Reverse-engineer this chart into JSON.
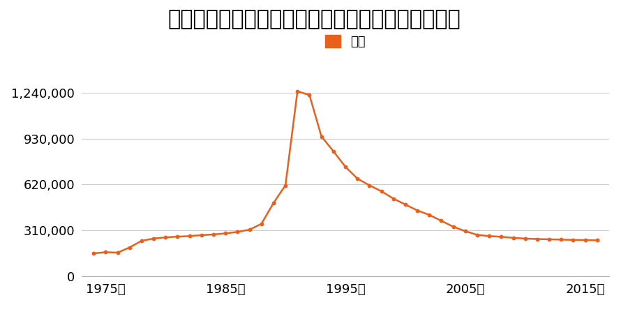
{
  "title": "大阪府東大阪市岩田町３丁目５０９番５の地価推移",
  "legend_label": "価格",
  "line_color": "#e8601c",
  "marker_color": "#e8601c",
  "background_color": "#ffffff",
  "grid_color": "#cccccc",
  "years": [
    1974,
    1975,
    1976,
    1977,
    1978,
    1979,
    1980,
    1981,
    1982,
    1983,
    1984,
    1985,
    1986,
    1987,
    1988,
    1989,
    1990,
    1991,
    1992,
    1993,
    1994,
    1995,
    1996,
    1997,
    1998,
    1999,
    2000,
    2001,
    2002,
    2003,
    2004,
    2005,
    2006,
    2007,
    2008,
    2009,
    2010,
    2011,
    2012,
    2013,
    2014,
    2015,
    2016
  ],
  "values": [
    155000,
    163000,
    160000,
    195000,
    240000,
    255000,
    263000,
    268000,
    272000,
    278000,
    283000,
    290000,
    300000,
    315000,
    355000,
    495000,
    615000,
    1250000,
    1225000,
    945000,
    845000,
    740000,
    660000,
    615000,
    575000,
    525000,
    485000,
    445000,
    415000,
    375000,
    335000,
    305000,
    280000,
    272000,
    267000,
    260000,
    255000,
    252000,
    250000,
    248000,
    246000,
    245000,
    243000
  ],
  "ylim": [
    0,
    1400000
  ],
  "yticks": [
    0,
    310000,
    620000,
    930000,
    1240000
  ],
  "ytick_labels": [
    "0",
    "310,000",
    "620,000",
    "930,000",
    "1,240,000"
  ],
  "xtick_years": [
    1975,
    1985,
    1995,
    2005,
    2015
  ],
  "xlabel_suffix": "年",
  "title_fontsize": 22,
  "legend_fontsize": 13,
  "tick_fontsize": 13
}
